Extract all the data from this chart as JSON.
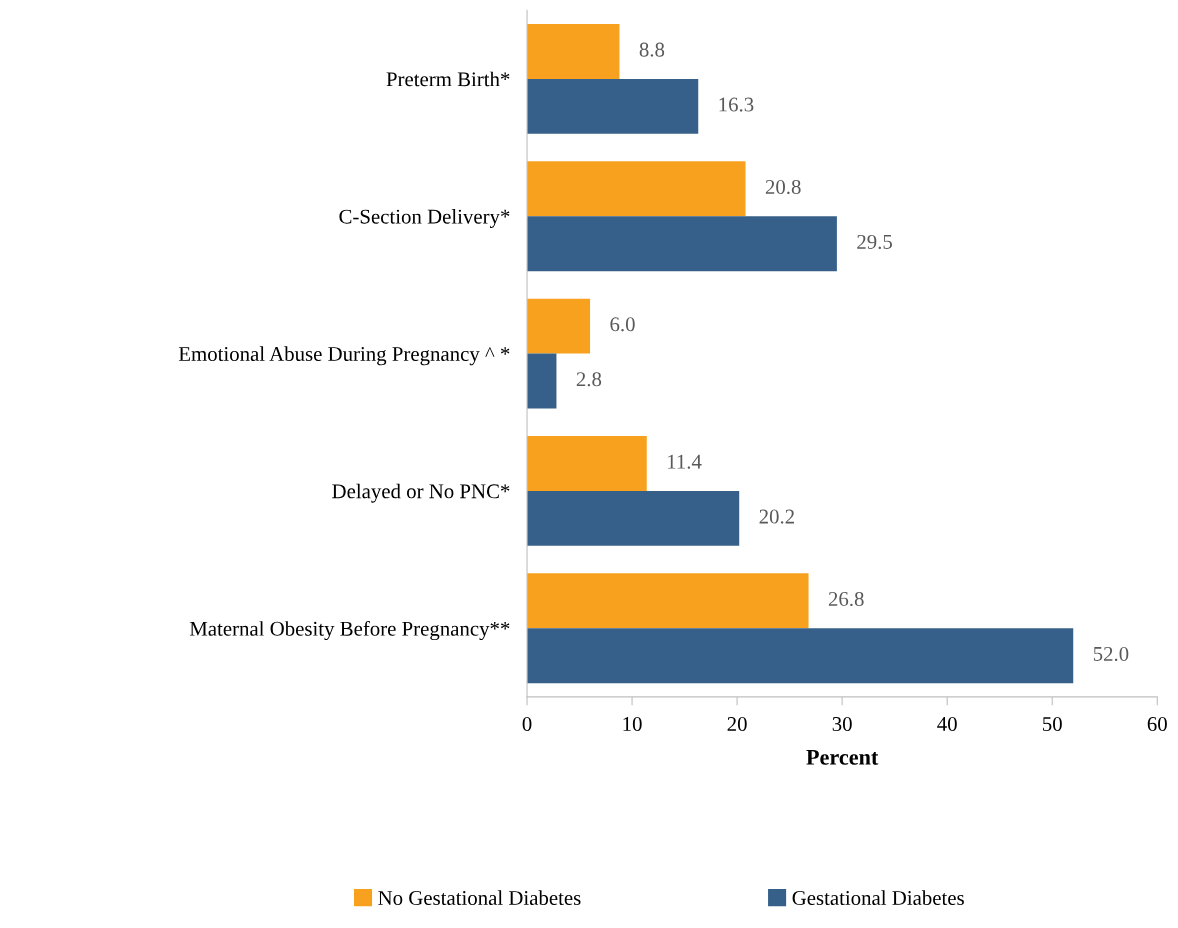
{
  "chart_data": {
    "type": "bar",
    "orientation": "horizontal",
    "xlabel": "Percent",
    "categories": [
      "Preterm Birth*",
      "C-Section Delivery*",
      "Emotional Abuse During Pregnancy ^ *",
      "Delayed or No PNC*",
      "Maternal Obesity Before Pregnancy**"
    ],
    "series": [
      {
        "name": "No Gestational Diabetes",
        "color": "#f7a11f",
        "values": [
          8.8,
          20.8,
          6.0,
          11.4,
          26.8
        ],
        "value_labels": [
          "8.8",
          "20.8",
          "6.0",
          "11.4",
          "26.8"
        ]
      },
      {
        "name": "Gestational Diabetes",
        "color": "#366089",
        "values": [
          16.3,
          29.5,
          2.8,
          20.2,
          52.0
        ],
        "value_labels": [
          "16.3",
          "29.5",
          "2.8",
          "20.2",
          "52.0"
        ]
      }
    ],
    "xlim": [
      0,
      60
    ],
    "xticks": [
      0,
      10,
      20,
      30,
      40,
      50,
      60
    ],
    "grid": false,
    "legend": "bottom"
  }
}
